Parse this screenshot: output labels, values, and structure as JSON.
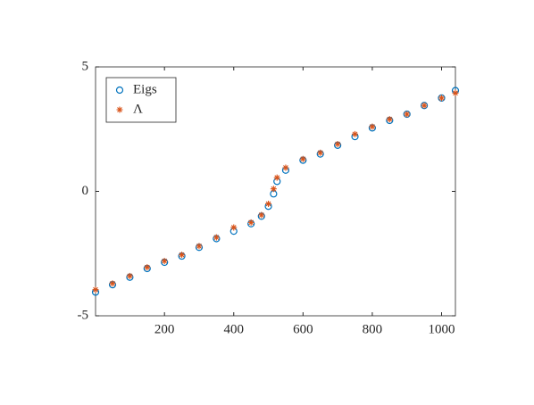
{
  "chart_data": {
    "type": "scatter",
    "x": [
      1,
      50,
      100,
      150,
      200,
      250,
      300,
      350,
      400,
      450,
      480,
      500,
      515,
      525,
      550,
      600,
      650,
      700,
      750,
      800,
      850,
      900,
      950,
      1000,
      1040
    ],
    "series": [
      {
        "name": "Eigs",
        "color": "#0072bd",
        "marker": "circle",
        "values": [
          -4.05,
          -3.75,
          -3.45,
          -3.1,
          -2.85,
          -2.6,
          -2.25,
          -1.9,
          -1.6,
          -1.3,
          -1.0,
          -0.6,
          -0.1,
          0.4,
          0.85,
          1.25,
          1.5,
          1.85,
          2.2,
          2.55,
          2.85,
          3.1,
          3.45,
          3.75,
          4.05
        ]
      },
      {
        "name": "Λ",
        "color": "#d95319",
        "marker": "asterisk",
        "values": [
          -3.95,
          -3.7,
          -3.4,
          -3.05,
          -2.8,
          -2.55,
          -2.2,
          -1.85,
          -1.45,
          -1.25,
          -0.95,
          -0.5,
          0.1,
          0.55,
          0.95,
          1.3,
          1.55,
          1.9,
          2.3,
          2.6,
          2.9,
          3.1,
          3.45,
          3.75,
          3.95
        ]
      }
    ],
    "xlim": [
      1,
      1040
    ],
    "xticks": [
      200,
      400,
      600,
      800,
      1000
    ],
    "ylim": [
      -5,
      5
    ],
    "yticks": [
      -5,
      0,
      5
    ],
    "legend": "upper-left",
    "grid": false
  }
}
